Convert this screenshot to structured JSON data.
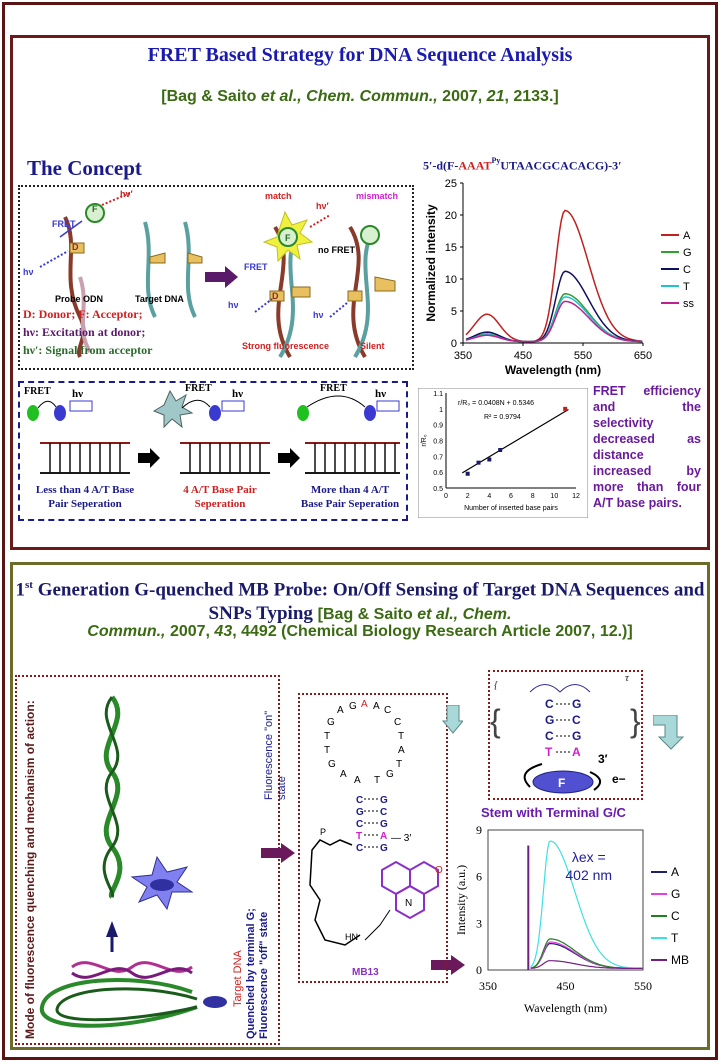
{
  "panel1": {
    "title": "FRET Based Strategy for DNA Sequence Analysis",
    "citation_pre": "[Bag & Saito ",
    "citation_etal": "et al.,",
    "citation_journal": " Chem. Commun.,",
    "citation_year": " 2007,",
    "citation_vol": " 21",
    "citation_post": ", 2133.]",
    "concept_heading": "The Concept",
    "diagram": {
      "fret": "FRET",
      "hv": "hν",
      "hv_prime": "hν′",
      "F": "F",
      "D": "D",
      "match": "match",
      "mismatch": "mismatch",
      "no_fret": "no FRET",
      "probe_odn": "Probe ODN",
      "target_dna": "Target DNA",
      "strong_fluorescence": "Strong fluorescence",
      "silent": "Silent",
      "legend_line1": "D: Donor; F: Acceptor;",
      "legend_line2": "hν: Excitation at donor;",
      "legend_line3": "hν′: Signal from acceptor"
    },
    "distance_diagram": {
      "fret": "FRET",
      "hv": "hν",
      "label1": "Less than 4 A/T Base Pair Seperation",
      "label2": "4 A/T Base Pair Seperation",
      "label3": "More than 4 A/T Base Pair Seperation"
    },
    "note": "FRET efficiency and the selectivity decreased as distance increased by more than four A/T base pairs."
  },
  "panel2": {
    "title_sup": "st",
    "title_1": "1",
    "title_main": " Generation G-quenched MB Probe: On/Off Sensing of Target DNA Sequences and SNPs Typing ",
    "citation_pre": "[Bag & Saito ",
    "citation_etal": "et al.,",
    "citation_journal": " Chem.",
    "citation_journal2": "Commun.,",
    "citation_year": " 2007,",
    "citation_vol": " 43",
    "citation_post": ", 4492  (Chemical Biology Research Article 2007, 12.)]",
    "mode_label": "Mode of fluorescence quenching and mechanism of action:",
    "target_dna": "Target DNA",
    "quenched_label": "Quenched by terminal G; Fluorescence \"off\" state",
    "fluor_on": "Fluorescence \"on\" state",
    "mb_label": "MB13",
    "stem_label": "Stem with Terminal G/C",
    "hairpin": {
      "loop": "TAGAACCTATGTTAG",
      "three_prime": "3′",
      "hn": "HN",
      "n": "N",
      "o": "O",
      "p": "P"
    },
    "inset": {
      "tau": "τ",
      "three_prime": "3′",
      "e": "e−",
      "F": "F"
    }
  },
  "chart_data": [
    {
      "type": "line",
      "title": "5′-d(F-AAATPyUTAACGCACACG)-3′",
      "title_parts": {
        "pre": "5′-d(F-",
        "red": "AAAT",
        "sup": "Py",
        "post": "UTAACGCACACG)-3′"
      },
      "xlabel": "Wavelength (nm)",
      "ylabel": "Normalized intensity",
      "xlim": [
        350,
        650
      ],
      "ylim": [
        0,
        25
      ],
      "xticks": [
        350,
        450,
        550,
        650
      ],
      "yticks": [
        0,
        5,
        10,
        15,
        20,
        25
      ],
      "legend_position": "right",
      "series": [
        {
          "name": "A",
          "color": "#c02020",
          "peak": 20.5,
          "shoulder": 4.3
        },
        {
          "name": "G",
          "color": "#30a030",
          "peak": 7.5,
          "shoulder": 1.2
        },
        {
          "name": "C",
          "color": "#101060",
          "peak": 11.0,
          "shoulder": 1.5
        },
        {
          "name": "T",
          "color": "#20c0e0",
          "peak": 7.0,
          "shoulder": 1.1
        },
        {
          "name": "ss",
          "color": "#c02090",
          "peak": 6.3,
          "shoulder": 1.0
        }
      ]
    },
    {
      "type": "scatter",
      "xlabel": "Number of inserted base pairs",
      "ylabel": "r/R₀",
      "xlim": [
        0,
        12
      ],
      "ylim": [
        0.5,
        1.1
      ],
      "xticks": [
        0,
        2,
        4,
        6,
        8,
        10,
        12
      ],
      "yticks": [
        0.5,
        0.6,
        0.7,
        0.8,
        0.9,
        1,
        1.1
      ],
      "equation": "r/R₀ = 0.0408N + 0.5346",
      "r2": "R² = 0.9794",
      "points": [
        [
          2,
          0.59
        ],
        [
          3,
          0.66
        ],
        [
          4,
          0.68
        ],
        [
          5,
          0.74
        ],
        [
          11,
          1.0
        ]
      ],
      "fit": {
        "slope": 0.0408,
        "intercept": 0.5346
      }
    },
    {
      "type": "line",
      "xlabel": "Wavelength (nm)",
      "ylabel": "Intensity (a.u.)",
      "xlim": [
        350,
        550
      ],
      "ylim": [
        0,
        9
      ],
      "xticks": [
        350,
        450,
        550
      ],
      "yticks": [
        0,
        3,
        6,
        9
      ],
      "annotation": "λex = 402 nm",
      "legend_position": "right",
      "series": [
        {
          "name": "A",
          "color": "#202070",
          "peak": 1.6
        },
        {
          "name": "G",
          "color": "#e040e0",
          "peak": 1.7
        },
        {
          "name": "C",
          "color": "#208020",
          "peak": 1.9
        },
        {
          "name": "T",
          "color": "#40e0e0",
          "peak": 8.2
        },
        {
          "name": "MB",
          "color": "#702080",
          "peak": 0.5
        }
      ]
    }
  ]
}
